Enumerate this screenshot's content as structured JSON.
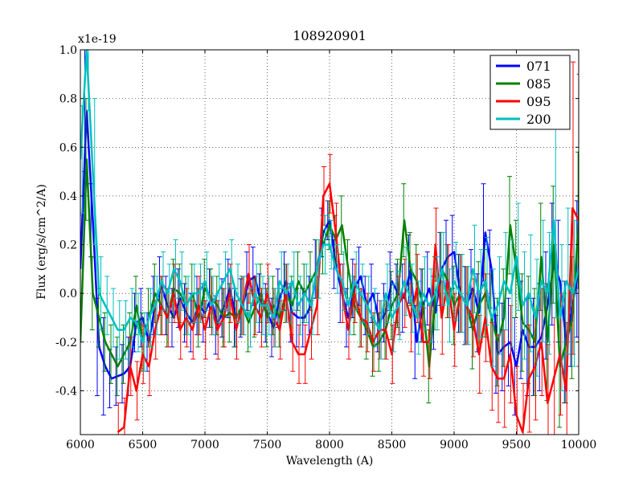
{
  "chart_data": {
    "type": "line",
    "title": "108920901",
    "xlabel": "Wavelength (A)",
    "ylabel": "Flux (erg/s/cm^2/A)",
    "y_multiplier": "x1e-19",
    "xlim": [
      6000,
      10000
    ],
    "ylim": [
      -0.58,
      1.0
    ],
    "xticks": [
      6000,
      6500,
      7000,
      7500,
      8000,
      8500,
      9000,
      9500,
      10000
    ],
    "xtick_labels": [
      "6000",
      "6500",
      "7000",
      "7500",
      "8000",
      "8500",
      "9000",
      "9500",
      "10000"
    ],
    "yticks": [
      -0.4,
      -0.2,
      0.0,
      0.2,
      0.4,
      0.6,
      0.8,
      1.0
    ],
    "ytick_labels": [
      "-0.4",
      "-0.2",
      "0.0",
      "0.2",
      "0.4",
      "0.6",
      "0.8",
      "1.0"
    ],
    "grid": true,
    "legend_position": "top-right",
    "series": [
      {
        "name": "071",
        "color": "#0000ff",
        "x": [
          6000,
          6050,
          6100,
          6150,
          6200,
          6250,
          6300,
          6350,
          6400,
          6450,
          6500,
          6550,
          6600,
          6650,
          6700,
          6750,
          6800,
          6850,
          6900,
          6950,
          7000,
          7050,
          7100,
          7150,
          7200,
          7250,
          7300,
          7350,
          7400,
          7450,
          7500,
          7550,
          7600,
          7650,
          7700,
          7750,
          7800,
          7850,
          7900,
          7950,
          8000,
          8050,
          8100,
          8150,
          8200,
          8250,
          8300,
          8350,
          8400,
          8450,
          8500,
          8550,
          8600,
          8650,
          8700,
          8750,
          8800,
          8850,
          8900,
          8950,
          9000,
          9050,
          9100,
          9150,
          9200,
          9250,
          9300,
          9350,
          9400,
          9450,
          9500,
          9550,
          9600,
          9650,
          9700,
          9750,
          9800,
          9850,
          9900,
          9950,
          10000
        ],
        "y": [
          0.1,
          0.75,
          0.3,
          -0.22,
          -0.3,
          -0.35,
          -0.34,
          -0.33,
          -0.3,
          -0.12,
          -0.1,
          -0.2,
          -0.05,
          0.03,
          -0.05,
          -0.1,
          -0.02,
          -0.08,
          -0.12,
          -0.05,
          -0.08,
          -0.02,
          -0.13,
          -0.06,
          0.02,
          -0.1,
          -0.06,
          0.05,
          0.07,
          -0.04,
          -0.08,
          -0.14,
          -0.02,
          0.05,
          -0.08,
          -0.1,
          -0.1,
          -0.05,
          0.1,
          0.25,
          0.3,
          0.12,
          0.0,
          -0.1,
          0.02,
          0.07,
          -0.05,
          0.0,
          -0.12,
          -0.08,
          0.05,
          0.0,
          -0.02,
          0.1,
          -0.2,
          -0.05,
          0.02,
          -0.08,
          0.1,
          0.15,
          0.17,
          0.0,
          -0.05,
          0.02,
          -0.08,
          0.25,
          0.1,
          -0.25,
          -0.22,
          -0.2,
          -0.3,
          -0.15,
          -0.22,
          -0.22,
          -0.18,
          -0.05,
          0.12,
          0.05,
          -0.2,
          -0.05,
          0.1
        ],
        "err": [
          0.22,
          0.25,
          0.15,
          0.2,
          0.2,
          0.12,
          0.12,
          0.12,
          0.12,
          0.12,
          0.12,
          0.12,
          0.12,
          0.12,
          0.12,
          0.12,
          0.12,
          0.12,
          0.12,
          0.12,
          0.12,
          0.12,
          0.12,
          0.12,
          0.12,
          0.12,
          0.12,
          0.12,
          0.12,
          0.12,
          0.12,
          0.12,
          0.12,
          0.12,
          0.12,
          0.12,
          0.12,
          0.12,
          0.12,
          0.1,
          0.08,
          0.1,
          0.12,
          0.12,
          0.12,
          0.12,
          0.12,
          0.12,
          0.12,
          0.12,
          0.12,
          0.12,
          0.14,
          0.14,
          0.15,
          0.15,
          0.15,
          0.15,
          0.15,
          0.15,
          0.15,
          0.16,
          0.16,
          0.16,
          0.16,
          0.2,
          0.16,
          0.16,
          0.18,
          0.18,
          0.2,
          0.2,
          0.2,
          0.2,
          0.22,
          0.22,
          0.25,
          0.25,
          0.25,
          0.25,
          0.28
        ]
      },
      {
        "name": "085",
        "color": "#008000",
        "x": [
          6000,
          6050,
          6100,
          6150,
          6200,
          6250,
          6300,
          6350,
          6400,
          6450,
          6500,
          6550,
          6600,
          6650,
          6700,
          6750,
          6800,
          6850,
          6900,
          6950,
          7000,
          7050,
          7100,
          7150,
          7200,
          7250,
          7300,
          7350,
          7400,
          7450,
          7500,
          7550,
          7600,
          7650,
          7700,
          7750,
          7800,
          7850,
          7900,
          7950,
          8000,
          8050,
          8100,
          8150,
          8200,
          8250,
          8300,
          8350,
          8400,
          8450,
          8500,
          8550,
          8600,
          8650,
          8700,
          8750,
          8800,
          8850,
          8900,
          8950,
          9000,
          9050,
          9100,
          9150,
          9200,
          9250,
          9300,
          9350,
          9400,
          9450,
          9500,
          9550,
          9600,
          9650,
          9700,
          9750,
          9800,
          9850,
          9900,
          9950,
          10000
        ],
        "y": [
          -0.2,
          0.55,
          0.0,
          -0.1,
          -0.2,
          -0.25,
          -0.3,
          -0.25,
          -0.2,
          -0.05,
          -0.2,
          -0.1,
          0.0,
          -0.05,
          -0.1,
          0.02,
          0.0,
          -0.05,
          0.0,
          -0.1,
          0.02,
          -0.02,
          -0.05,
          -0.1,
          -0.08,
          -0.1,
          -0.05,
          -0.12,
          -0.06,
          0.0,
          -0.1,
          -0.05,
          -0.1,
          0.0,
          -0.05,
          0.05,
          0.0,
          0.05,
          0.1,
          0.2,
          0.28,
          0.22,
          0.28,
          0.1,
          -0.05,
          -0.1,
          -0.15,
          -0.22,
          -0.2,
          -0.15,
          -0.05,
          0.0,
          0.3,
          0.1,
          0.05,
          -0.05,
          -0.3,
          0.0,
          0.1,
          0.05,
          -0.05,
          0.0,
          -0.05,
          -0.15,
          -0.05,
          0.0,
          -0.1,
          -0.2,
          -0.1,
          0.28,
          0.1,
          -0.12,
          -0.15,
          -0.2,
          0.15,
          -0.2,
          0.2,
          -0.3,
          -0.2,
          -0.1,
          0.3
        ],
        "err": [
          0.2,
          0.25,
          0.15,
          0.12,
          0.12,
          0.12,
          0.12,
          0.12,
          0.12,
          0.12,
          0.12,
          0.12,
          0.12,
          0.12,
          0.12,
          0.12,
          0.12,
          0.12,
          0.12,
          0.12,
          0.12,
          0.12,
          0.12,
          0.12,
          0.12,
          0.12,
          0.12,
          0.12,
          0.12,
          0.12,
          0.12,
          0.12,
          0.12,
          0.12,
          0.12,
          0.12,
          0.12,
          0.12,
          0.12,
          0.12,
          0.1,
          0.1,
          0.12,
          0.12,
          0.12,
          0.12,
          0.12,
          0.12,
          0.12,
          0.12,
          0.14,
          0.14,
          0.15,
          0.15,
          0.15,
          0.15,
          0.15,
          0.15,
          0.15,
          0.15,
          0.16,
          0.16,
          0.16,
          0.16,
          0.18,
          0.18,
          0.18,
          0.18,
          0.2,
          0.2,
          0.2,
          0.2,
          0.22,
          0.22,
          0.22,
          0.24,
          0.24,
          0.25,
          0.25,
          0.25,
          0.28
        ]
      },
      {
        "name": "095",
        "color": "#ff0000",
        "x": [
          6300,
          6350,
          6400,
          6450,
          6500,
          6550,
          6600,
          6650,
          6700,
          6750,
          6800,
          6850,
          6900,
          6950,
          7000,
          7050,
          7100,
          7150,
          7200,
          7250,
          7300,
          7350,
          7400,
          7450,
          7500,
          7550,
          7600,
          7650,
          7700,
          7750,
          7800,
          7850,
          7900,
          7950,
          8000,
          8050,
          8100,
          8150,
          8200,
          8250,
          8300,
          8350,
          8400,
          8450,
          8500,
          8550,
          8600,
          8650,
          8700,
          8750,
          8800,
          8850,
          8900,
          8950,
          9000,
          9050,
          9100,
          9150,
          9200,
          9250,
          9300,
          9350,
          9400,
          9450,
          9500,
          9550,
          9600,
          9650,
          9700,
          9750,
          9800,
          9850,
          9900,
          9950,
          10000
        ],
        "y": [
          -0.57,
          -0.55,
          -0.3,
          -0.4,
          -0.25,
          -0.3,
          -0.15,
          -0.05,
          -0.1,
          0.0,
          -0.15,
          -0.1,
          -0.15,
          -0.05,
          -0.15,
          -0.05,
          -0.15,
          -0.1,
          0.0,
          -0.15,
          -0.05,
          0.08,
          -0.05,
          -0.1,
          0.0,
          -0.1,
          -0.15,
          0.0,
          -0.2,
          -0.25,
          -0.25,
          -0.15,
          -0.05,
          0.4,
          0.45,
          0.25,
          0.0,
          -0.15,
          0.0,
          -0.1,
          -0.12,
          -0.2,
          -0.15,
          -0.15,
          -0.25,
          -0.05,
          0.0,
          -0.1,
          0.02,
          -0.2,
          -0.2,
          0.2,
          -0.1,
          0.05,
          -0.15,
          0.0,
          -0.05,
          -0.1,
          -0.25,
          -0.1,
          -0.3,
          -0.35,
          -0.35,
          -0.25,
          -0.5,
          -0.57,
          -0.35,
          -0.3,
          -0.2,
          -0.45,
          -0.35,
          -0.25,
          -0.4,
          0.35,
          0.3
        ],
        "err": [
          0.12,
          0.12,
          0.12,
          0.12,
          0.12,
          0.12,
          0.12,
          0.12,
          0.12,
          0.12,
          0.12,
          0.12,
          0.12,
          0.12,
          0.12,
          0.12,
          0.12,
          0.12,
          0.12,
          0.12,
          0.12,
          0.12,
          0.12,
          0.12,
          0.12,
          0.12,
          0.12,
          0.12,
          0.12,
          0.12,
          0.12,
          0.12,
          0.12,
          0.12,
          0.12,
          0.12,
          0.12,
          0.12,
          0.12,
          0.12,
          0.12,
          0.12,
          0.12,
          0.12,
          0.12,
          0.12,
          0.14,
          0.14,
          0.14,
          0.14,
          0.15,
          0.15,
          0.15,
          0.15,
          0.15,
          0.16,
          0.16,
          0.16,
          0.16,
          0.18,
          0.18,
          0.18,
          0.2,
          0.2,
          0.2,
          0.2,
          0.22,
          0.22,
          0.22,
          0.24,
          0.25,
          0.25,
          0.28,
          0.6,
          0.6
        ]
      },
      {
        "name": "200",
        "color": "#00bfbf",
        "x": [
          6000,
          6050,
          6100,
          6150,
          6200,
          6250,
          6300,
          6350,
          6400,
          6450,
          6500,
          6550,
          6600,
          6650,
          6700,
          6750,
          6800,
          6850,
          6900,
          6950,
          7000,
          7050,
          7100,
          7150,
          7200,
          7250,
          7300,
          7350,
          7400,
          7450,
          7500,
          7550,
          7600,
          7650,
          7700,
          7750,
          7800,
          7850,
          7900,
          7950,
          8000,
          8050,
          8100,
          8150,
          8200,
          8250,
          8300,
          8350,
          8400,
          8450,
          8500,
          8550,
          8600,
          8650,
          8700,
          8750,
          8800,
          8850,
          8900,
          8950,
          9000,
          9050,
          9100,
          9150,
          9200,
          9250,
          9300,
          9350,
          9400,
          9450,
          9500,
          9550,
          9600,
          9650,
          9700,
          9750,
          9800,
          9850,
          9900,
          9950,
          10000
        ],
        "y": [
          0.55,
          1.0,
          0.5,
          0.0,
          -0.05,
          -0.1,
          -0.15,
          -0.15,
          -0.1,
          -0.12,
          -0.2,
          -0.1,
          -0.05,
          0.05,
          0.0,
          0.1,
          0.05,
          -0.05,
          0.0,
          0.0,
          0.05,
          -0.05,
          0.0,
          0.05,
          0.1,
          0.0,
          -0.05,
          -0.1,
          0.0,
          -0.05,
          -0.05,
          -0.1,
          0.05,
          0.0,
          0.05,
          -0.05,
          0.0,
          -0.05,
          0.1,
          0.2,
          0.2,
          0.1,
          0.05,
          -0.05,
          0.05,
          0.0,
          -0.05,
          -0.1,
          -0.15,
          0.0,
          -0.1,
          -0.05,
          0.05,
          -0.02,
          -0.1,
          0.0,
          -0.05,
          0.0,
          0.1,
          -0.05,
          0.05,
          0.0,
          -0.05,
          0.1,
          0.0,
          0.05,
          -0.1,
          -0.05,
          0.05,
          0.0,
          0.15,
          -0.05,
          0.0,
          -0.1,
          0.05,
          0.0,
          0.3,
          -0.1,
          0.05,
          0.0,
          0.1
        ],
        "err": [
          0.22,
          0.25,
          0.3,
          0.15,
          0.12,
          0.12,
          0.12,
          0.12,
          0.12,
          0.12,
          0.12,
          0.12,
          0.12,
          0.12,
          0.12,
          0.12,
          0.12,
          0.12,
          0.12,
          0.12,
          0.12,
          0.12,
          0.12,
          0.12,
          0.12,
          0.12,
          0.12,
          0.12,
          0.12,
          0.12,
          0.12,
          0.12,
          0.12,
          0.12,
          0.12,
          0.12,
          0.12,
          0.12,
          0.12,
          0.12,
          0.1,
          0.1,
          0.12,
          0.12,
          0.12,
          0.12,
          0.12,
          0.12,
          0.12,
          0.12,
          0.14,
          0.14,
          0.14,
          0.14,
          0.15,
          0.15,
          0.15,
          0.15,
          0.15,
          0.15,
          0.16,
          0.16,
          0.16,
          0.18,
          0.18,
          0.18,
          0.2,
          0.2,
          0.2,
          0.22,
          0.22,
          0.22,
          0.24,
          0.24,
          0.25,
          0.25,
          0.4,
          0.3,
          0.3,
          0.3,
          0.3
        ]
      }
    ]
  }
}
